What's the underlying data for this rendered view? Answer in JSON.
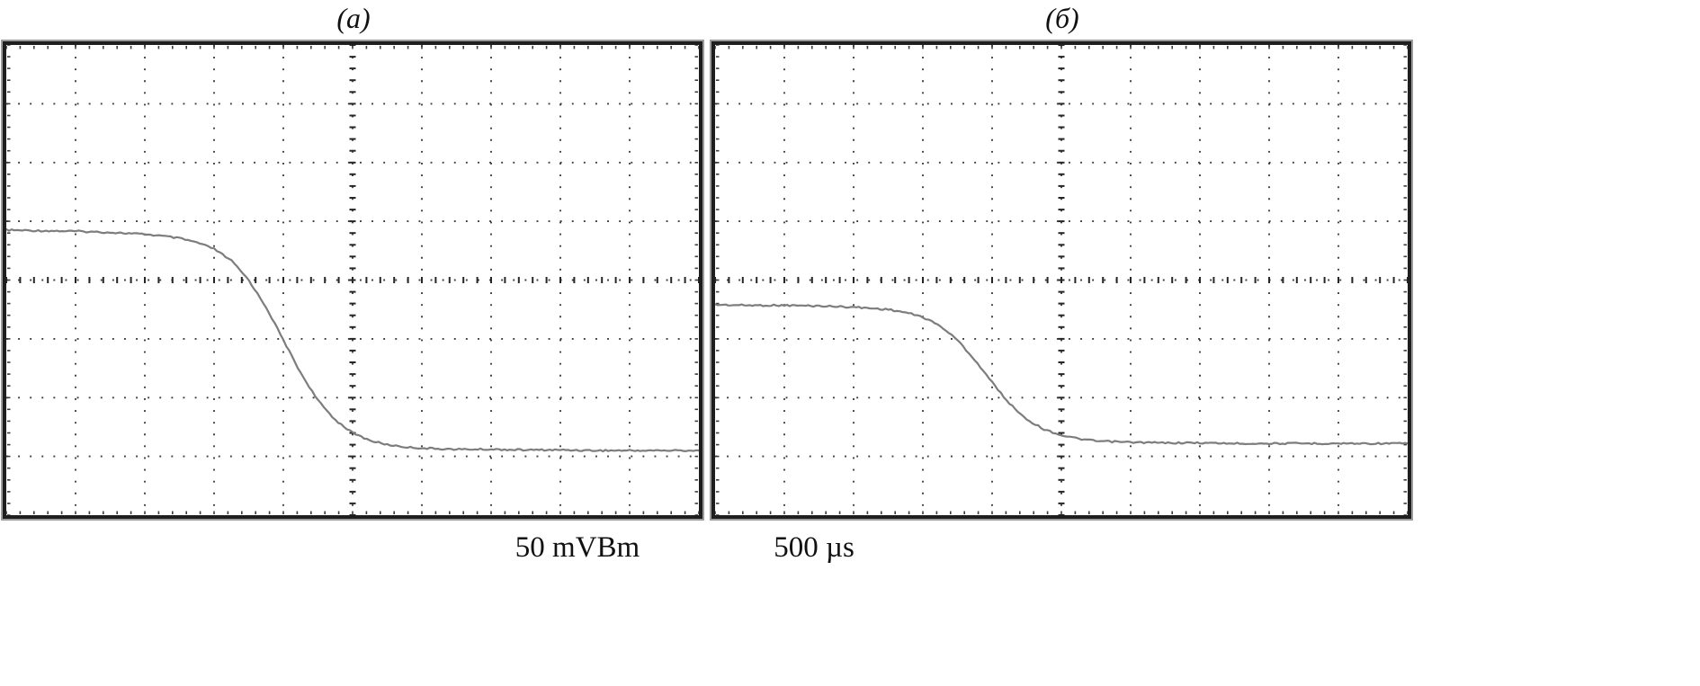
{
  "figure": {
    "panels": [
      {
        "label": "(а)"
      },
      {
        "label": "(б)"
      }
    ],
    "caption": {
      "voltage_scale": "50 mVBm",
      "time_scale": "500 µs"
    },
    "colors": {
      "background": "#ffffff",
      "border": "#1e1e1e",
      "grid_dot": "#3c3c3c",
      "axis_tick": "#262626",
      "trace": "#7d7d7d"
    }
  },
  "chart_data": [
    {
      "type": "line",
      "title": "(а)",
      "grid": {
        "cols": 10,
        "rows": 8,
        "center_axes": true,
        "style": "dotted"
      },
      "xlim": [
        0,
        10
      ],
      "ylim": [
        0,
        8
      ],
      "units": "oscilloscope grid divisions (x: left to right, y: top to bottom)",
      "legend": "none",
      "series": [
        {
          "name": "trace-a",
          "points": [
            [
              0,
              3.15
            ],
            [
              0.5,
              3.16
            ],
            [
              1,
              3.17
            ],
            [
              1.5,
              3.19
            ],
            [
              2,
              3.22
            ],
            [
              2.25,
              3.25
            ],
            [
              2.5,
              3.29
            ],
            [
              2.75,
              3.36
            ],
            [
              3,
              3.47
            ],
            [
              3.25,
              3.67
            ],
            [
              3.5,
              4.0
            ],
            [
              3.75,
              4.46
            ],
            [
              4,
              5.02
            ],
            [
              4.25,
              5.58
            ],
            [
              4.5,
              6.05
            ],
            [
              4.75,
              6.38
            ],
            [
              5,
              6.6
            ],
            [
              5.25,
              6.73
            ],
            [
              5.5,
              6.8
            ],
            [
              5.75,
              6.84
            ],
            [
              6,
              6.86
            ],
            [
              6.5,
              6.88
            ],
            [
              7,
              6.88
            ],
            [
              7.5,
              6.89
            ],
            [
              8,
              6.89
            ],
            [
              8.5,
              6.9
            ],
            [
              9,
              6.9
            ],
            [
              9.5,
              6.9
            ],
            [
              10,
              6.9
            ]
          ]
        }
      ]
    },
    {
      "type": "line",
      "title": "(б)",
      "grid": {
        "cols": 10,
        "rows": 8,
        "center_axes": true,
        "style": "dotted"
      },
      "xlim": [
        0,
        10
      ],
      "ylim": [
        0,
        8
      ],
      "units": "oscilloscope grid divisions (x: left to right, y: top to bottom)",
      "legend": "none",
      "series": [
        {
          "name": "trace-b",
          "points": [
            [
              0,
              4.42
            ],
            [
              0.5,
              4.43
            ],
            [
              1,
              4.43
            ],
            [
              1.5,
              4.44
            ],
            [
              2,
              4.46
            ],
            [
              2.5,
              4.5
            ],
            [
              2.75,
              4.55
            ],
            [
              3,
              4.63
            ],
            [
              3.25,
              4.78
            ],
            [
              3.5,
              5.02
            ],
            [
              3.75,
              5.36
            ],
            [
              4,
              5.74
            ],
            [
              4.25,
              6.1
            ],
            [
              4.5,
              6.37
            ],
            [
              4.75,
              6.54
            ],
            [
              5,
              6.64
            ],
            [
              5.25,
              6.7
            ],
            [
              5.5,
              6.74
            ],
            [
              6,
              6.76
            ],
            [
              6.5,
              6.77
            ],
            [
              7,
              6.77
            ],
            [
              7.5,
              6.78
            ],
            [
              8,
              6.78
            ],
            [
              8.5,
              6.78
            ],
            [
              9,
              6.78
            ],
            [
              9.5,
              6.78
            ],
            [
              10,
              6.78
            ]
          ]
        }
      ]
    }
  ]
}
